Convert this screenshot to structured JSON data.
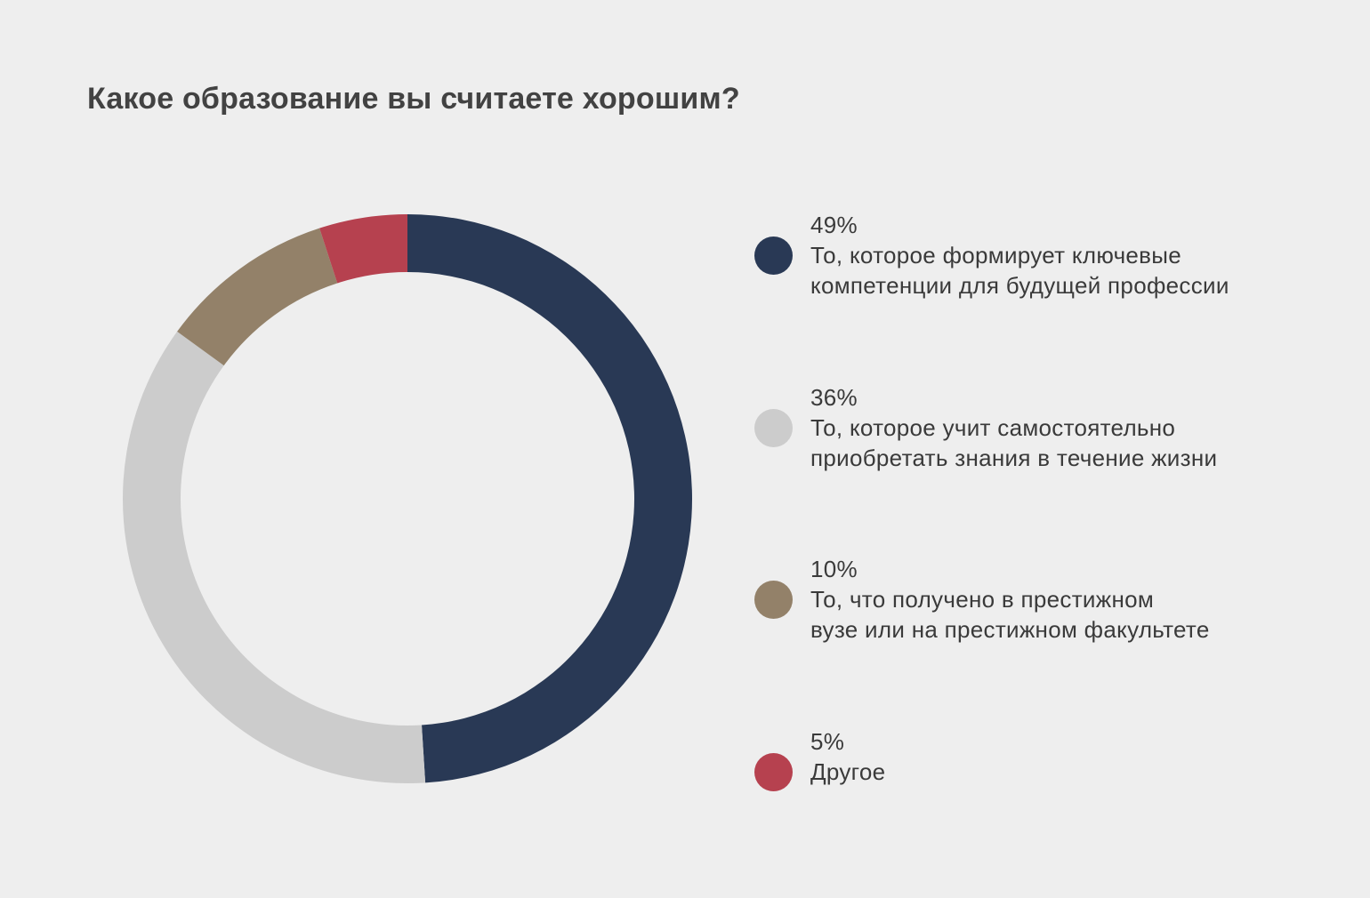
{
  "chart_data": {
    "type": "pie",
    "title": "Какое образование вы считаете хорошим?",
    "categories": [
      "То, которое формирует ключевые компетенции для будущей профессии",
      "То, которое учит самостоятельно приобретать знания в течение жизни",
      "То, что получено в престижном вузе или на престижном факультете",
      "Другое"
    ],
    "values": [
      49,
      36,
      10,
      5
    ],
    "unit": "%",
    "donut": true,
    "legend_position": "right",
    "colors": [
      "#293955",
      "#cccccc",
      "#938169",
      "#b6414f"
    ],
    "legend": [
      {
        "value_label": "49%",
        "lines": [
          "То, которое формирует ключевые",
          "компетенции для будущей профессии"
        ]
      },
      {
        "value_label": "36%",
        "lines": [
          "То, которое учит самостоятельно",
          "приобретать знания в течение жизни"
        ]
      },
      {
        "value_label": "10%",
        "lines": [
          "То, что получено в престижном",
          "вузе или на престижном факультете"
        ]
      },
      {
        "value_label": "5%",
        "lines": [
          "Другое"
        ]
      }
    ]
  },
  "colors": {
    "background": "#eeeeee",
    "title": "#424242",
    "text": "#3a3a3a"
  }
}
